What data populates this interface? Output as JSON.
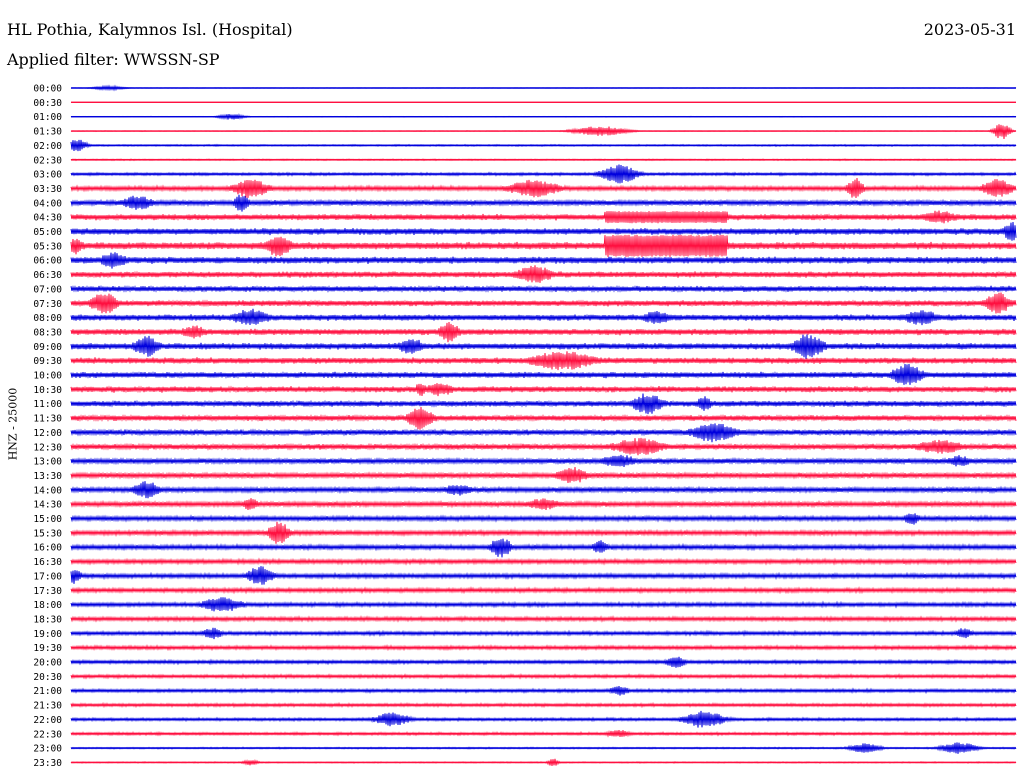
{
  "header": {
    "station": "HL Pothia, Kalymnos Isl. (Hospital)",
    "date": "2023-05-31",
    "filter": "Applied filter: WWSSN-SP"
  },
  "colors": {
    "blue": "#0000dd",
    "red": "#ff1040"
  },
  "chart_data": {
    "type": "line",
    "title": "HL Pothia, Kalymnos Isl. (Hospital)",
    "ylabel": "HNZ - 25000",
    "row_labels": [
      "00:00",
      "00:30",
      "01:00",
      "01:30",
      "02:00",
      "02:30",
      "03:00",
      "03:30",
      "04:00",
      "04:30",
      "05:00",
      "05:30",
      "06:00",
      "06:30",
      "07:00",
      "07:30",
      "08:00",
      "08:30",
      "09:00",
      "09:30",
      "10:00",
      "10:30",
      "11:00",
      "11:30",
      "12:00",
      "12:30",
      "13:00",
      "13:30",
      "14:00",
      "14:30",
      "15:00",
      "15:30",
      "16:00",
      "16:30",
      "17:00",
      "17:30",
      "18:00",
      "18:30",
      "19:00",
      "19:30",
      "20:00",
      "20:30",
      "21:00",
      "21:30",
      "22:00",
      "22:30",
      "23:00",
      "23:30"
    ],
    "row_noise": [
      0.25,
      0.1,
      0.35,
      0.45,
      0.9,
      0.8,
      1.5,
      2.4,
      2.8,
      3.3,
      3.6,
      4.0,
      3.8,
      3.3,
      3.2,
      3.2,
      3.4,
      3.4,
      3.5,
      3.4,
      3.3,
      3.3,
      3.2,
      3.1,
      3.0,
      3.0,
      2.8,
      2.8,
      2.7,
      2.7,
      2.5,
      2.5,
      2.5,
      2.4,
      2.4,
      2.3,
      2.2,
      2.2,
      2.0,
      2.0,
      1.9,
      1.8,
      1.8,
      1.7,
      1.6,
      1.5,
      0.9,
      0.7
    ],
    "events": [
      {
        "row": 0,
        "pos": 0.04,
        "width": 0.012,
        "amp": 2
      },
      {
        "row": 2,
        "pos": 0.17,
        "width": 0.01,
        "amp": 3
      },
      {
        "row": 3,
        "pos": 0.56,
        "width": 0.02,
        "amp": 5
      },
      {
        "row": 3,
        "pos": 0.985,
        "width": 0.006,
        "amp": 9
      },
      {
        "row": 4,
        "pos": 0.005,
        "width": 0.008,
        "amp": 7
      },
      {
        "row": 6,
        "pos": 0.58,
        "width": 0.014,
        "amp": 10
      },
      {
        "row": 7,
        "pos": 0.19,
        "width": 0.014,
        "amp": 10
      },
      {
        "row": 7,
        "pos": 0.49,
        "width": 0.02,
        "amp": 9
      },
      {
        "row": 7,
        "pos": 0.83,
        "width": 0.006,
        "amp": 11
      },
      {
        "row": 7,
        "pos": 0.98,
        "width": 0.012,
        "amp": 10
      },
      {
        "row": 8,
        "pos": 0.07,
        "width": 0.012,
        "amp": 8
      },
      {
        "row": 8,
        "pos": 0.18,
        "width": 0.006,
        "amp": 9
      },
      {
        "row": 9,
        "pos": 0.63,
        "width": 0.065,
        "amp": 6,
        "flat": true
      },
      {
        "row": 9,
        "pos": 0.92,
        "width": 0.014,
        "amp": 7
      },
      {
        "row": 10,
        "pos": 0.995,
        "width": 0.006,
        "amp": 10
      },
      {
        "row": 11,
        "pos": 0.63,
        "width": 0.065,
        "amp": 11,
        "flat": true
      },
      {
        "row": 11,
        "pos": 0.22,
        "width": 0.01,
        "amp": 12
      },
      {
        "row": 11,
        "pos": 0.005,
        "width": 0.005,
        "amp": 9
      },
      {
        "row": 12,
        "pos": 0.045,
        "width": 0.01,
        "amp": 9
      },
      {
        "row": 13,
        "pos": 0.49,
        "width": 0.014,
        "amp": 10
      },
      {
        "row": 15,
        "pos": 0.035,
        "width": 0.01,
        "amp": 12
      },
      {
        "row": 15,
        "pos": 0.98,
        "width": 0.01,
        "amp": 12
      },
      {
        "row": 16,
        "pos": 0.19,
        "width": 0.015,
        "amp": 9
      },
      {
        "row": 16,
        "pos": 0.62,
        "width": 0.012,
        "amp": 7
      },
      {
        "row": 16,
        "pos": 0.9,
        "width": 0.014,
        "amp": 8
      },
      {
        "row": 17,
        "pos": 0.4,
        "width": 0.008,
        "amp": 11
      },
      {
        "row": 17,
        "pos": 0.13,
        "width": 0.01,
        "amp": 7
      },
      {
        "row": 18,
        "pos": 0.08,
        "width": 0.01,
        "amp": 11
      },
      {
        "row": 18,
        "pos": 0.36,
        "width": 0.01,
        "amp": 9
      },
      {
        "row": 18,
        "pos": 0.78,
        "width": 0.012,
        "amp": 13
      },
      {
        "row": 19,
        "pos": 0.52,
        "width": 0.025,
        "amp": 10
      },
      {
        "row": 20,
        "pos": 0.885,
        "width": 0.012,
        "amp": 12
      },
      {
        "row": 21,
        "pos": 0.37,
        "width": 0.004,
        "amp": 8
      },
      {
        "row": 21,
        "pos": 0.39,
        "width": 0.012,
        "amp": 7
      },
      {
        "row": 22,
        "pos": 0.61,
        "width": 0.012,
        "amp": 11
      },
      {
        "row": 22,
        "pos": 0.67,
        "width": 0.006,
        "amp": 8
      },
      {
        "row": 23,
        "pos": 0.37,
        "width": 0.01,
        "amp": 12
      },
      {
        "row": 24,
        "pos": 0.68,
        "width": 0.018,
        "amp": 10
      },
      {
        "row": 25,
        "pos": 0.6,
        "width": 0.02,
        "amp": 9
      },
      {
        "row": 25,
        "pos": 0.92,
        "width": 0.02,
        "amp": 7
      },
      {
        "row": 26,
        "pos": 0.58,
        "width": 0.014,
        "amp": 7
      },
      {
        "row": 26,
        "pos": 0.94,
        "width": 0.01,
        "amp": 6
      },
      {
        "row": 27,
        "pos": 0.53,
        "width": 0.012,
        "amp": 9
      },
      {
        "row": 28,
        "pos": 0.08,
        "width": 0.01,
        "amp": 9
      },
      {
        "row": 28,
        "pos": 0.41,
        "width": 0.012,
        "amp": 6
      },
      {
        "row": 29,
        "pos": 0.19,
        "width": 0.006,
        "amp": 7
      },
      {
        "row": 29,
        "pos": 0.5,
        "width": 0.014,
        "amp": 6
      },
      {
        "row": 30,
        "pos": 0.89,
        "width": 0.006,
        "amp": 7
      },
      {
        "row": 31,
        "pos": 0.22,
        "width": 0.008,
        "amp": 12
      },
      {
        "row": 32,
        "pos": 0.455,
        "width": 0.008,
        "amp": 11
      },
      {
        "row": 32,
        "pos": 0.56,
        "width": 0.006,
        "amp": 7
      },
      {
        "row": 34,
        "pos": 0.2,
        "width": 0.01,
        "amp": 10
      },
      {
        "row": 34,
        "pos": 0.003,
        "width": 0.006,
        "amp": 8
      },
      {
        "row": 36,
        "pos": 0.16,
        "width": 0.016,
        "amp": 8
      },
      {
        "row": 38,
        "pos": 0.15,
        "width": 0.008,
        "amp": 6
      },
      {
        "row": 38,
        "pos": 0.945,
        "width": 0.006,
        "amp": 6
      },
      {
        "row": 40,
        "pos": 0.64,
        "width": 0.008,
        "amp": 6
      },
      {
        "row": 42,
        "pos": 0.58,
        "width": 0.008,
        "amp": 5
      },
      {
        "row": 44,
        "pos": 0.34,
        "width": 0.014,
        "amp": 7
      },
      {
        "row": 44,
        "pos": 0.67,
        "width": 0.016,
        "amp": 9
      },
      {
        "row": 45,
        "pos": 0.58,
        "width": 0.01,
        "amp": 4
      },
      {
        "row": 46,
        "pos": 0.84,
        "width": 0.012,
        "amp": 5
      },
      {
        "row": 46,
        "pos": 0.94,
        "width": 0.014,
        "amp": 6
      },
      {
        "row": 47,
        "pos": 0.51,
        "width": 0.004,
        "amp": 5
      },
      {
        "row": 47,
        "pos": 0.19,
        "width": 0.006,
        "amp": 3
      }
    ]
  }
}
